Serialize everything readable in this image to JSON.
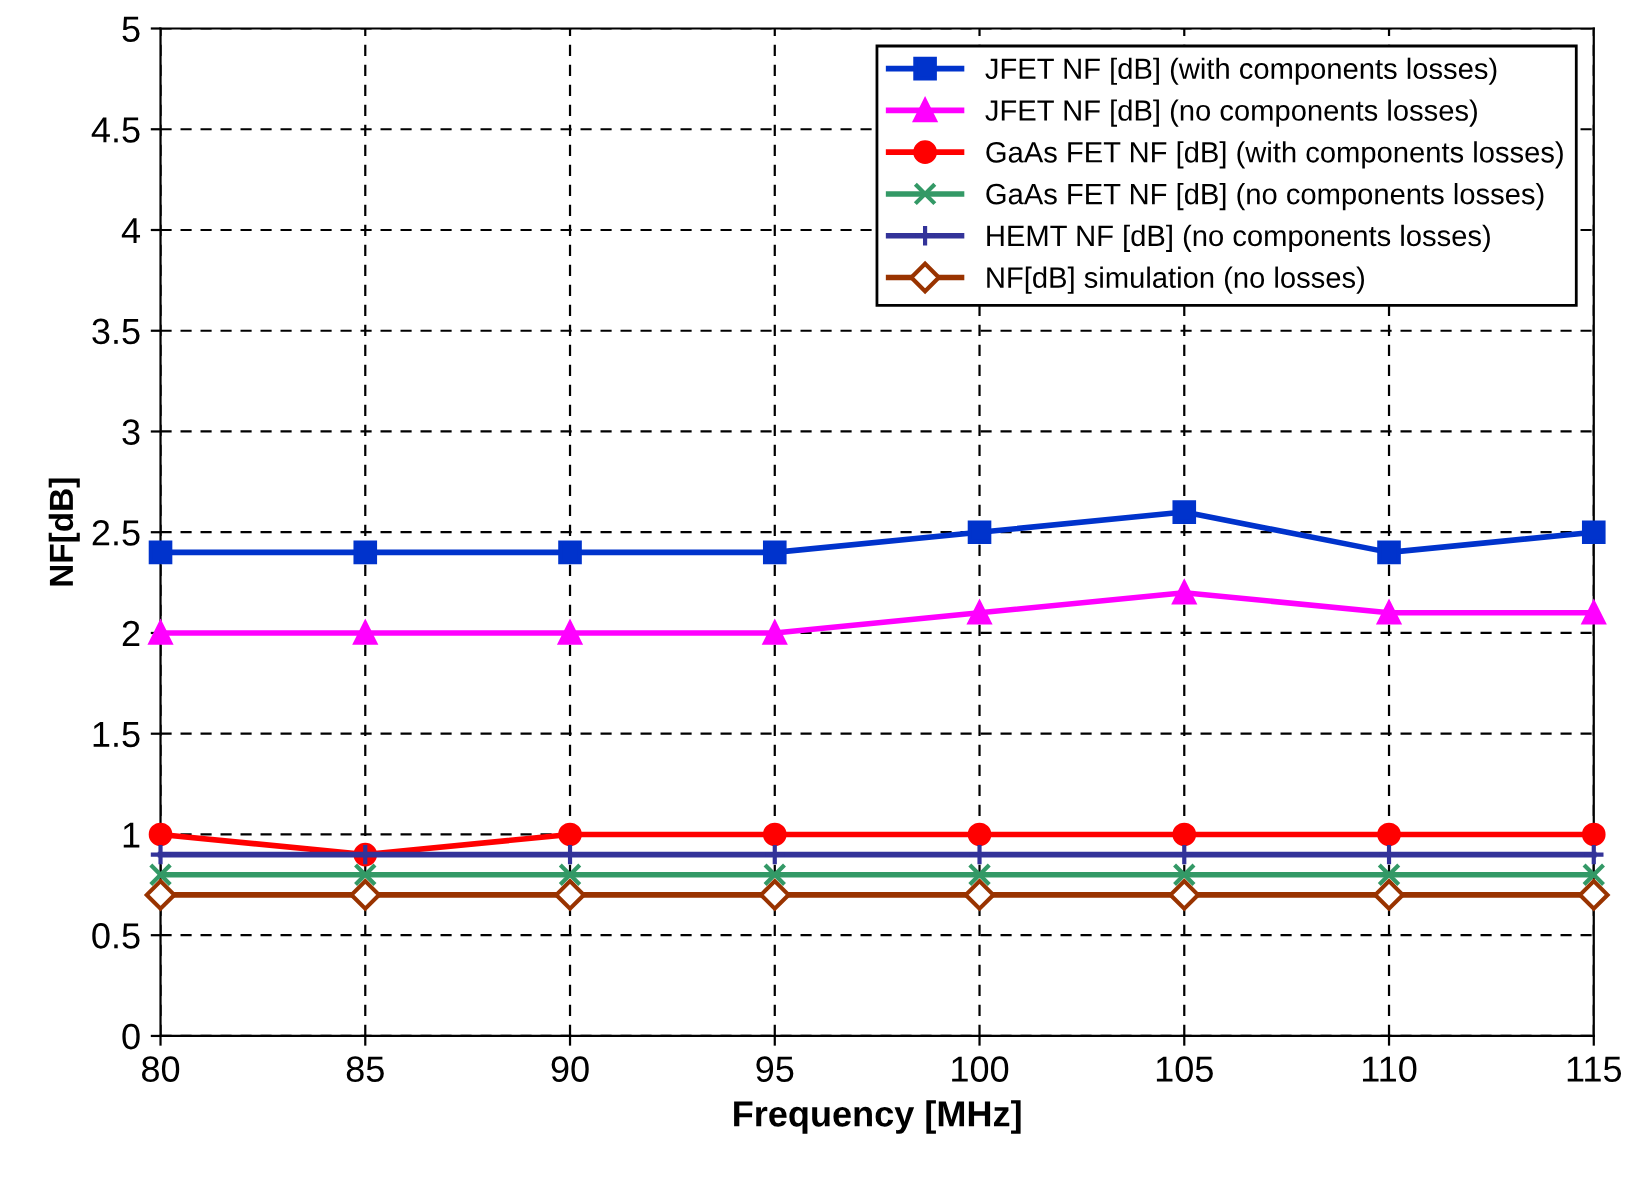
{
  "chart_data": {
    "type": "line",
    "xlabel": "Frequency [MHz]",
    "ylabel": "NF[dB]",
    "x": [
      80,
      85,
      90,
      95,
      100,
      105,
      110,
      115
    ],
    "xlim": [
      80,
      115
    ],
    "xticks": [
      80,
      85,
      90,
      95,
      100,
      105,
      110,
      115
    ],
    "ylim": [
      0,
      5
    ],
    "yticks": [
      0,
      0.5,
      1,
      1.5,
      2,
      2.5,
      3,
      3.5,
      4,
      4.5,
      5
    ],
    "grid": true,
    "legend": "top right",
    "line_style": "solid",
    "series": [
      {
        "name": "JFET NF [dB] (with components losses)",
        "color": "#0033cc",
        "marker": "square",
        "values": [
          2.4,
          2.4,
          2.4,
          2.4,
          2.5,
          2.6,
          2.4,
          2.5
        ]
      },
      {
        "name": "JFET NF [dB] (no components losses)",
        "color": "#ff00ff",
        "marker": "triangle",
        "values": [
          2,
          2,
          2,
          2,
          2.1,
          2.2,
          2.1,
          2.1
        ]
      },
      {
        "name": "GaAs FET NF [dB] (with components losses)",
        "color": "#ff0000",
        "marker": "circle",
        "values": [
          1,
          0.9,
          1,
          1,
          1,
          1,
          1,
          1
        ]
      },
      {
        "name": "GaAs FET NF [dB] (no components losses)",
        "color": "#339966",
        "marker": "cross",
        "values": [
          0.8,
          0.8,
          0.8,
          0.8,
          0.8,
          0.8,
          0.8,
          0.8
        ]
      },
      {
        "name": "HEMT NF [dB] (no components losses)",
        "color": "#333399",
        "marker": "plus",
        "values": [
          0.9,
          0.9,
          0.9,
          0.9,
          0.9,
          0.9,
          0.9,
          0.9
        ]
      },
      {
        "name": "NF[dB] simulation (no losses)",
        "color": "#993300",
        "marker": "diamond",
        "values": [
          0.7,
          0.7,
          0.7,
          0.7,
          0.7,
          0.7,
          0.7,
          0.7
        ]
      }
    ]
  }
}
